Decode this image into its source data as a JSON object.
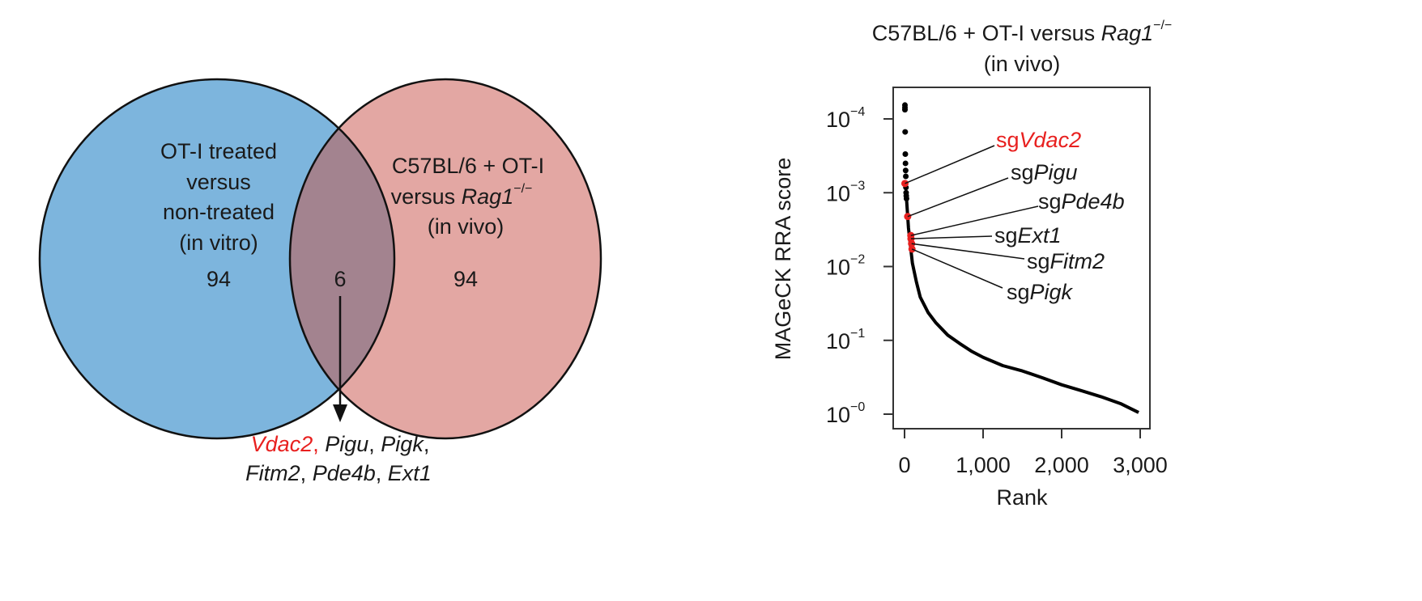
{
  "venn": {
    "left": {
      "lines": [
        "OT-I treated",
        "versus",
        "non-treated",
        "(in vitro)"
      ],
      "count": "94",
      "color": "#7db5dd"
    },
    "right": {
      "line1": "C57BL/6 + OT-I",
      "line2_prefix": "versus ",
      "line2_gene": "Rag1",
      "line2_sup": "−/−",
      "line3": "(in vivo)",
      "count": "94",
      "color": "#e3a7a3"
    },
    "overlap": {
      "count": "6",
      "color": "#a3838f"
    },
    "genes": [
      {
        "name": "Vdac2",
        "sep": ", ",
        "color": "#e8201f"
      },
      {
        "name": "Pigu",
        "sep": ", ",
        "color": "#1a1a1a"
      },
      {
        "name": "Pigk",
        "sep": ",",
        "color": "#1a1a1a"
      },
      {
        "name": "Fitm2",
        "sep": ", ",
        "color": "#1a1a1a"
      },
      {
        "name": "Pde4b",
        "sep": ", ",
        "color": "#1a1a1a"
      },
      {
        "name": "Ext1",
        "sep": "",
        "color": "#1a1a1a"
      }
    ]
  },
  "chart_data": {
    "type": "scatter",
    "title_line1_prefix": "C57BL/6 + OT-I versus ",
    "title_gene": "Rag1",
    "title_sup": "−/−",
    "title_line2": "(in vivo)",
    "xlabel": "Rank",
    "ylabel": "MAGeCK RRA score",
    "xlim": [
      0,
      3000
    ],
    "ylim": [
      0.0001,
      1
    ],
    "y_scale": "log",
    "y_reversed": true,
    "grid": false,
    "x_ticks": [
      0,
      1000,
      2000,
      3000
    ],
    "x_tick_labels": [
      "0",
      "1,000",
      "2,000",
      "3,000"
    ],
    "y_ticks": [
      0.0001,
      0.001,
      0.01,
      0.1,
      1
    ],
    "y_tick_base": "10",
    "y_tick_exponents": [
      "−4",
      "−3",
      "−2",
      "−1",
      "−0"
    ],
    "top_points": [
      {
        "rank": 5,
        "score": 6.5e-05
      },
      {
        "rank": 5,
        "score": 7e-05
      },
      {
        "rank": 5,
        "score": 7.5e-05
      },
      {
        "rank": 8,
        "score": 0.00015
      },
      {
        "rank": 10,
        "score": 0.0003
      },
      {
        "rank": 12,
        "score": 0.0004
      },
      {
        "rank": 14,
        "score": 0.0005
      },
      {
        "rank": 16,
        "score": 0.0006
      },
      {
        "rank": 18,
        "score": 0.00085
      },
      {
        "rank": 20,
        "score": 0.001
      },
      {
        "rank": 22,
        "score": 0.0011
      },
      {
        "rank": 25,
        "score": 0.0012
      }
    ],
    "curve": [
      {
        "rank": 25,
        "score": 0.0012
      },
      {
        "rank": 50,
        "score": 0.003
      },
      {
        "rank": 100,
        "score": 0.009
      },
      {
        "rank": 150,
        "score": 0.016
      },
      {
        "rank": 200,
        "score": 0.026
      },
      {
        "rank": 300,
        "score": 0.042
      },
      {
        "rank": 400,
        "score": 0.058
      },
      {
        "rank": 550,
        "score": 0.085
      },
      {
        "rank": 700,
        "score": 0.11
      },
      {
        "rank": 850,
        "score": 0.14
      },
      {
        "rank": 1000,
        "score": 0.17
      },
      {
        "rank": 1250,
        "score": 0.22
      },
      {
        "rank": 1500,
        "score": 0.26
      },
      {
        "rank": 1750,
        "score": 0.32
      },
      {
        "rank": 2000,
        "score": 0.4
      },
      {
        "rank": 2250,
        "score": 0.48
      },
      {
        "rank": 2500,
        "score": 0.58
      },
      {
        "rank": 2750,
        "score": 0.72
      },
      {
        "rank": 2980,
        "score": 0.95
      }
    ],
    "highlighted": [
      {
        "prefix": "sg",
        "gene": "Vdac2",
        "rank": 5,
        "score": 0.00075,
        "color": "#e8201f"
      },
      {
        "prefix": "sg",
        "gene": "Pigu",
        "rank": 40,
        "score": 0.0021,
        "color": "#1a1a1a"
      },
      {
        "prefix": "sg",
        "gene": "Pde4b",
        "rank": 80,
        "score": 0.0038,
        "color": "#1a1a1a"
      },
      {
        "prefix": "sg",
        "gene": "Ext1",
        "rank": 82,
        "score": 0.0042,
        "color": "#1a1a1a"
      },
      {
        "prefix": "sg",
        "gene": "Fitm2",
        "rank": 90,
        "score": 0.0049,
        "color": "#1a1a1a"
      },
      {
        "prefix": "sg",
        "gene": "Pigk",
        "rank": 95,
        "score": 0.0058,
        "color": "#1a1a1a"
      }
    ],
    "point_color": "#000000",
    "highlight_point_color": "#e8201f"
  }
}
